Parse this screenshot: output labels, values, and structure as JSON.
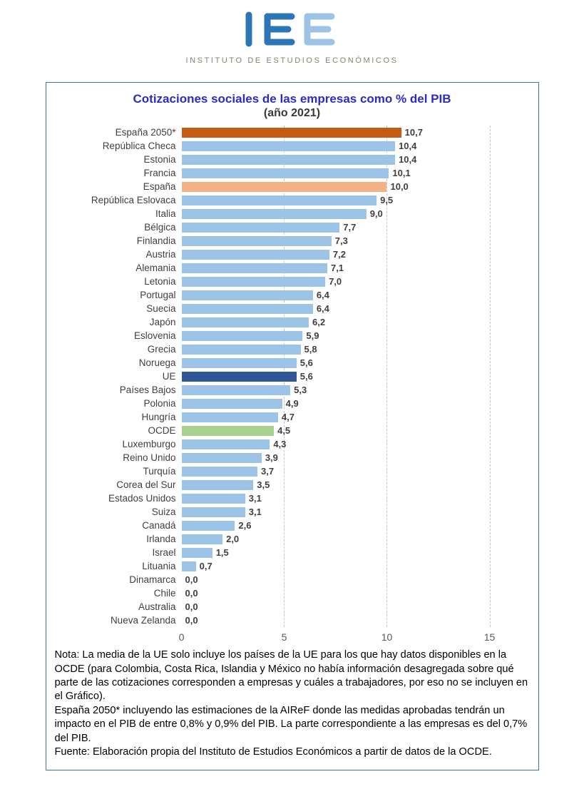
{
  "logo": {
    "subtitle": "INSTITUTO DE ESTUDIOS ECONÓMICOS",
    "mark_color_primary": "#2E75B6",
    "mark_color_light": "#9DC3E6",
    "subtitle_color": "#8B7E6E"
  },
  "chart_data": {
    "type": "bar",
    "orientation": "horizontal",
    "title": "Cotizaciones sociales de las empresas como % del PIB",
    "subtitle": "(año 2021)",
    "title_color": "#2B2BC9",
    "categories": [
      "España 2050*",
      "República Checa",
      "Estonia",
      "Francia",
      "España",
      "República Eslovaca",
      "Italia",
      "Bélgica",
      "Finlandia",
      "Austria",
      "Alemania",
      "Letonia",
      "Portugal",
      "Suecia",
      "Japón",
      "Eslovenia",
      "Grecia",
      "Noruega",
      "UE",
      "Países Bajos",
      "Polonia",
      "Hungría",
      "OCDE",
      "Luxemburgo",
      "Reino Unido",
      "Turquía",
      "Corea del Sur",
      "Estados Unidos",
      "Suiza",
      "Canadá",
      "Irlanda",
      "Israel",
      "Lituania",
      "Dinamarca",
      "Chile",
      "Australia",
      "Nueva Zelanda"
    ],
    "values": [
      10.7,
      10.4,
      10.4,
      10.1,
      10.0,
      9.5,
      9.0,
      7.7,
      7.3,
      7.2,
      7.1,
      7.0,
      6.4,
      6.4,
      6.2,
      5.9,
      5.8,
      5.6,
      5.6,
      5.3,
      4.9,
      4.7,
      4.5,
      4.3,
      3.9,
      3.7,
      3.5,
      3.1,
      3.1,
      2.6,
      2.0,
      1.5,
      0.7,
      0.0,
      0.0,
      0.0,
      0.0
    ],
    "value_labels": [
      "10,7",
      "10,4",
      "10,4",
      "10,1",
      "10,0",
      "9,5",
      "9,0",
      "7,7",
      "7,3",
      "7,2",
      "7,1",
      "7,0",
      "6,4",
      "6,4",
      "6,2",
      "5,9",
      "5,8",
      "5,6",
      "5,6",
      "5,3",
      "4,9",
      "4,7",
      "4,5",
      "4,3",
      "3,9",
      "3,7",
      "3,5",
      "3,1",
      "3,1",
      "2,6",
      "2,0",
      "1,5",
      "0,7",
      "0,0",
      "0,0",
      "0,0",
      "0,0"
    ],
    "xlim": [
      0,
      15
    ],
    "xticks": [
      0,
      5,
      10,
      15
    ],
    "grid": "vertical-dashed",
    "legend": "none",
    "bar_color_default": "#9DC3E6",
    "highlight_colors": {
      "España 2050*": "#C55A11",
      "España": "#F4B183",
      "UE": "#2F5597",
      "OCDE": "#A9D18E"
    }
  },
  "note": {
    "p1": "Nota: La media de la UE solo incluye los países de la UE para los que hay datos disponibles en la OCDE (para Colombia, Costa Rica,  Islandia y México no había información desagregada sobre qué parte de las cotizaciones corresponden a empresas y cuáles a trabajadores, por eso no se incluyen en el Gráfico).",
    "p2": "España 2050* incluyendo las estimaciones de la AIReF donde las medidas aprobadas tendrán un impacto en el PIB de entre 0,8% y 0,9% del PIB. La parte correspondiente a las empresas es del 0,7% del PIB.",
    "p3": "Fuente: Elaboración propia del Instituto de Estudios Económicos a partir de datos de la OCDE."
  }
}
